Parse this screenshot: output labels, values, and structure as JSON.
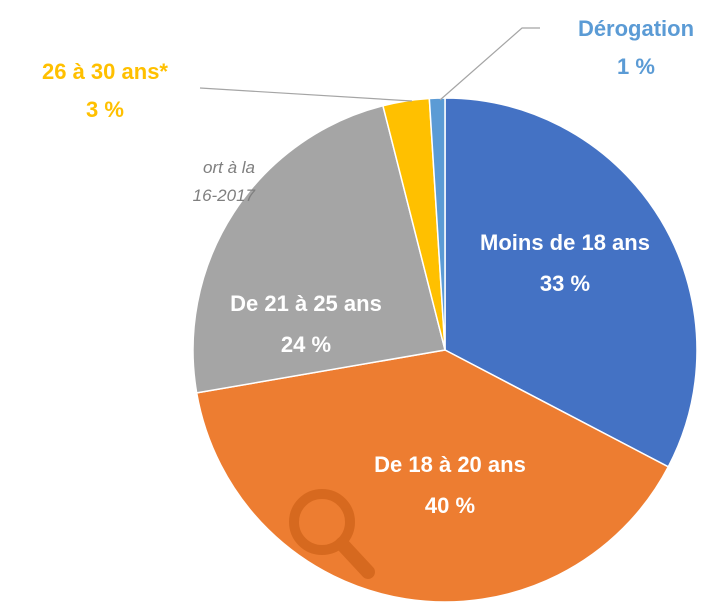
{
  "chart_data": {
    "type": "pie",
    "categories": [
      "Moins de 18 ans",
      "De 18 à 20 ans",
      "De 21 à 25 ans",
      "26 à 30 ans*",
      "Dérogation"
    ],
    "values": [
      33,
      40,
      24,
      3,
      1
    ],
    "value_labels": [
      "33 %",
      "40 %",
      "24 %",
      "3 %",
      "1 %"
    ],
    "colors": [
      "#4472c4",
      "#ed7d31",
      "#a5a5a5",
      "#ffc000",
      "#5b9bd5"
    ],
    "annotations": [
      "ort à la",
      "16-2017"
    ]
  }
}
